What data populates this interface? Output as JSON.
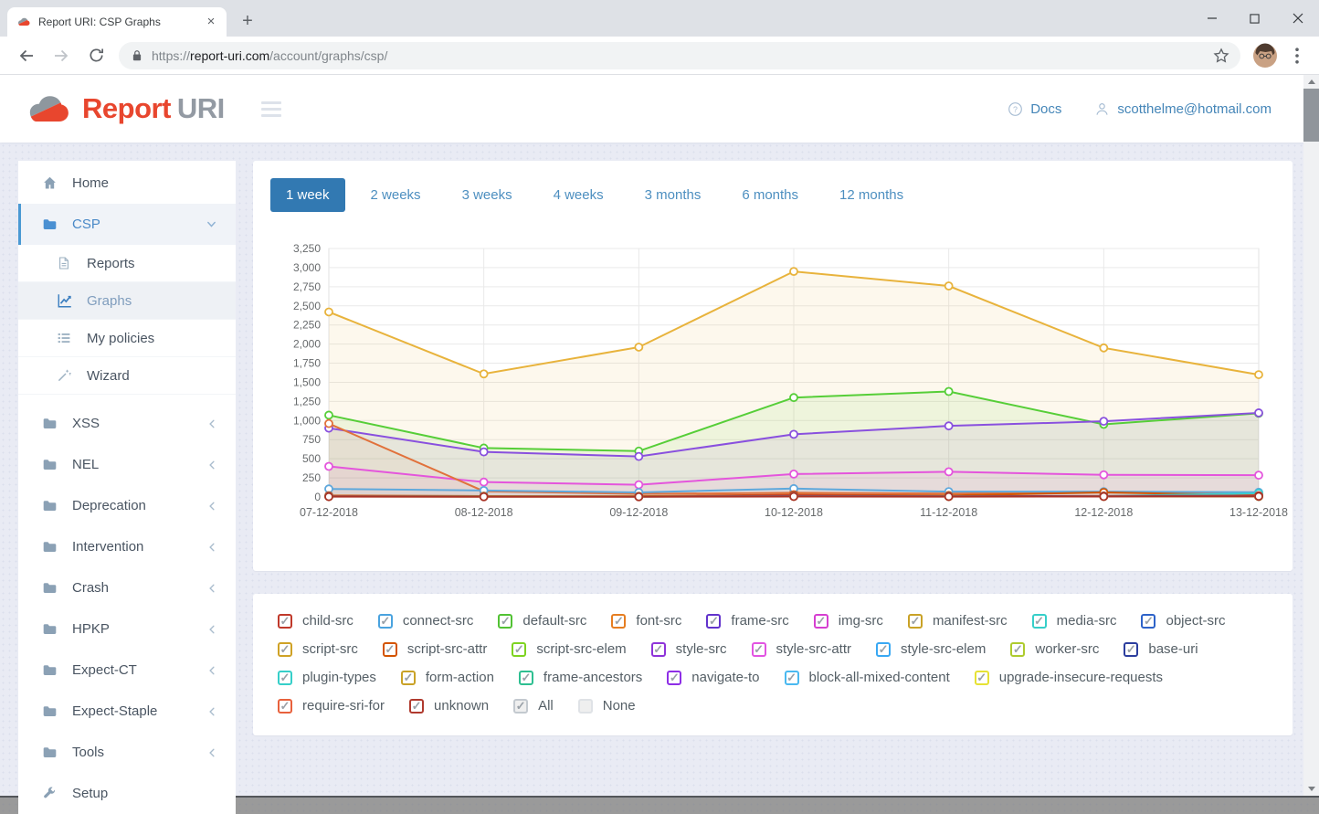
{
  "browser": {
    "tab_title": "Report URI: CSP Graphs",
    "url_scheme": "https://",
    "url_host": "report-uri.com",
    "url_path": "/account/graphs/csp/"
  },
  "header": {
    "logo_primary": "Report",
    "logo_secondary": "URI",
    "docs_label": "Docs",
    "user_email": "scotthelme@hotmail.com"
  },
  "sidebar": {
    "items": [
      {
        "label": "Home",
        "icon": "home",
        "chevron": "none",
        "active": false
      },
      {
        "label": "CSP",
        "icon": "folder",
        "chevron": "down",
        "active": true,
        "children": [
          {
            "label": "Reports",
            "icon": "document",
            "active": false
          },
          {
            "label": "Graphs",
            "icon": "chart",
            "active": true
          },
          {
            "label": "My policies",
            "icon": "list",
            "active": false
          },
          {
            "label": "Wizard",
            "icon": "wand",
            "active": false
          }
        ]
      },
      {
        "label": "XSS",
        "icon": "folder",
        "chevron": "left",
        "active": false
      },
      {
        "label": "NEL",
        "icon": "folder",
        "chevron": "left",
        "active": false
      },
      {
        "label": "Deprecation",
        "icon": "folder",
        "chevron": "left",
        "active": false
      },
      {
        "label": "Intervention",
        "icon": "folder",
        "chevron": "left",
        "active": false
      },
      {
        "label": "Crash",
        "icon": "folder",
        "chevron": "left",
        "active": false
      },
      {
        "label": "HPKP",
        "icon": "folder",
        "chevron": "left",
        "active": false
      },
      {
        "label": "Expect-CT",
        "icon": "folder",
        "chevron": "left",
        "active": false
      },
      {
        "label": "Expect-Staple",
        "icon": "folder",
        "chevron": "left",
        "active": false
      },
      {
        "label": "Tools",
        "icon": "folder",
        "chevron": "left",
        "active": false
      },
      {
        "label": "Setup",
        "icon": "wrench",
        "chevron": "none",
        "active": false
      }
    ]
  },
  "period_tabs": {
    "items": [
      "1 week",
      "2 weeks",
      "3 weeks",
      "4 weeks",
      "3 months",
      "6 months",
      "12 months"
    ],
    "active": "1 week"
  },
  "chart_data": {
    "type": "line",
    "title": "",
    "xlabel": "",
    "ylabel": "",
    "x": [
      "07-12-2018",
      "08-12-2018",
      "09-12-2018",
      "10-12-2018",
      "11-12-2018",
      "12-12-2018",
      "13-12-2018"
    ],
    "ylim": [
      0,
      3250
    ],
    "ytick_step": 250,
    "grid": true,
    "legend_position": "none",
    "series": [
      {
        "name": "script-src",
        "color": "#e8b33c",
        "fill_opacity": 0.09,
        "values": [
          2420,
          1610,
          1960,
          2950,
          2760,
          1950,
          1600
        ]
      },
      {
        "name": "default-src",
        "color": "#56ce38",
        "fill_opacity": 0.09,
        "values": [
          1070,
          640,
          600,
          1300,
          1380,
          950,
          1095
        ]
      },
      {
        "name": "style-src",
        "color": "#8950de",
        "fill_opacity": 0.08,
        "values": [
          900,
          590,
          530,
          820,
          930,
          990,
          1100
        ]
      },
      {
        "name": "img-src",
        "color": "#e455dc",
        "fill_opacity": 0.08,
        "values": [
          400,
          195,
          160,
          300,
          330,
          290,
          285
        ]
      },
      {
        "name": "font-src",
        "color": "#e1713b",
        "fill_opacity": 0.06,
        "values": [
          960,
          75,
          40,
          55,
          45,
          65,
          35
        ]
      },
      {
        "name": "connect-src",
        "color": "#5fa8dc",
        "fill_opacity": 0.06,
        "values": [
          105,
          85,
          60,
          110,
          70,
          70,
          62
        ]
      },
      {
        "name": "script-src-attr",
        "color": "#d35400",
        "fill_opacity": 0.05,
        "values": [
          18,
          12,
          10,
          30,
          20,
          60,
          22
        ]
      },
      {
        "name": "media-src",
        "color": "#38cfcf",
        "fill_opacity": 0.05,
        "values": [
          10,
          8,
          6,
          12,
          10,
          12,
          48
        ]
      },
      {
        "name": "child-src",
        "color": "#c7402e",
        "fill_opacity": 0.05,
        "values": [
          12,
          8,
          6,
          22,
          10,
          14,
          18
        ]
      },
      {
        "name": "base-uri",
        "color": "#3a49c0",
        "fill_opacity": 0.04,
        "values": [
          8,
          6,
          5,
          10,
          8,
          9,
          7
        ]
      },
      {
        "name": "worker-src",
        "color": "#b0c832",
        "fill_opacity": 0.04,
        "values": [
          6,
          5,
          4,
          8,
          6,
          7,
          6
        ]
      },
      {
        "name": "unknown",
        "color": "#a93226",
        "fill_opacity": 0.04,
        "values": [
          4,
          3,
          3,
          6,
          5,
          6,
          8
        ]
      }
    ]
  },
  "legend": {
    "rows": [
      [
        {
          "label": "child-src",
          "color": "#c0392b",
          "checked": true
        },
        {
          "label": "connect-src",
          "color": "#4aa3df",
          "checked": true
        },
        {
          "label": "default-src",
          "color": "#52c234",
          "checked": true
        },
        {
          "label": "font-src",
          "color": "#e67e22",
          "checked": true
        },
        {
          "label": "frame-src",
          "color": "#6233cc",
          "checked": true
        },
        {
          "label": "img-src",
          "color": "#d63fd1",
          "checked": true
        },
        {
          "label": "manifest-src",
          "color": "#c9a227",
          "checked": true
        },
        {
          "label": "media-src",
          "color": "#36cfc9",
          "checked": true
        },
        {
          "label": "object-src",
          "color": "#2e63c9",
          "checked": true
        }
      ],
      [
        {
          "label": "script-src",
          "color": "#cfa226",
          "checked": true
        },
        {
          "label": "script-src-attr",
          "color": "#d35400",
          "checked": true
        },
        {
          "label": "script-src-elem",
          "color": "#7ed321",
          "checked": true
        },
        {
          "label": "style-src",
          "color": "#8e34d9",
          "checked": true
        },
        {
          "label": "style-src-attr",
          "color": "#e254e2",
          "checked": true
        },
        {
          "label": "style-src-elem",
          "color": "#39a8f3",
          "checked": true
        },
        {
          "label": "worker-src",
          "color": "#aecb2f",
          "checked": true
        },
        {
          "label": "base-uri",
          "color": "#2c3e9e",
          "checked": true
        }
      ],
      [
        {
          "label": "plugin-types",
          "color": "#36cfc9",
          "checked": true
        },
        {
          "label": "form-action",
          "color": "#c9a227",
          "checked": true
        },
        {
          "label": "frame-ancestors",
          "color": "#2ebf91",
          "checked": true
        },
        {
          "label": "navigate-to",
          "color": "#8e2ee6",
          "checked": true
        },
        {
          "label": "block-all-mixed-content",
          "color": "#4ab9f0",
          "checked": true
        },
        {
          "label": "upgrade-insecure-requests",
          "color": "#e6e234",
          "checked": true
        }
      ],
      [
        {
          "label": "require-sri-for",
          "color": "#e8613c",
          "checked": true
        },
        {
          "label": "unknown",
          "color": "#b03a2e",
          "checked": true
        },
        {
          "label": "All",
          "color": "#c3c9cf",
          "checked": true,
          "gray": true
        },
        {
          "label": "None",
          "color": "#dfe2e6",
          "checked": false,
          "gray": true
        }
      ]
    ]
  },
  "colors": {
    "active_tab_blue": "#3279b2",
    "link_blue": "#4586b8",
    "logo_red": "#e8462e",
    "logo_gray": "#939aa3",
    "page_background": "#e9ebf4"
  }
}
